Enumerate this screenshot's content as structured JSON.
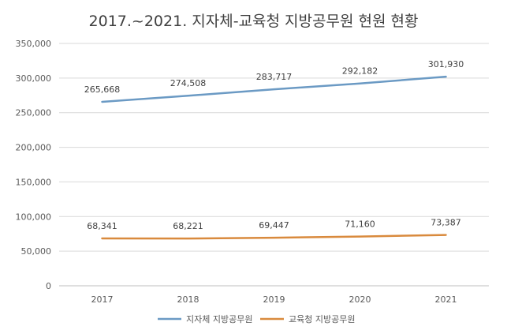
{
  "chart_data": {
    "type": "line",
    "title": "2017.~2021. 지자체-교육청 지방공무원 현원 현황",
    "x": [
      "2017",
      "2018",
      "2019",
      "2020",
      "2021"
    ],
    "ylim": [
      0,
      350000
    ],
    "yticks": [
      0,
      50000,
      100000,
      150000,
      200000,
      250000,
      300000,
      350000
    ],
    "ytick_labels": [
      "0",
      "50,000",
      "100,000",
      "150,000",
      "200,000",
      "250,000",
      "300,000",
      "350,000"
    ],
    "grid": true,
    "legend_position": "bottom",
    "series": [
      {
        "name": "지자체 지방공무원",
        "color": "#6b9ac4",
        "values": [
          265668,
          274508,
          283717,
          292182,
          301930
        ],
        "labels": [
          "265,668",
          "274,508",
          "283,717",
          "292,182",
          "301,930"
        ]
      },
      {
        "name": "교육청 지방공무원",
        "color": "#d98a3d",
        "values": [
          68341,
          68221,
          69447,
          71160,
          73387
        ],
        "labels": [
          "68,341",
          "68,221",
          "69,447",
          "71,160",
          "73,387"
        ]
      }
    ]
  }
}
